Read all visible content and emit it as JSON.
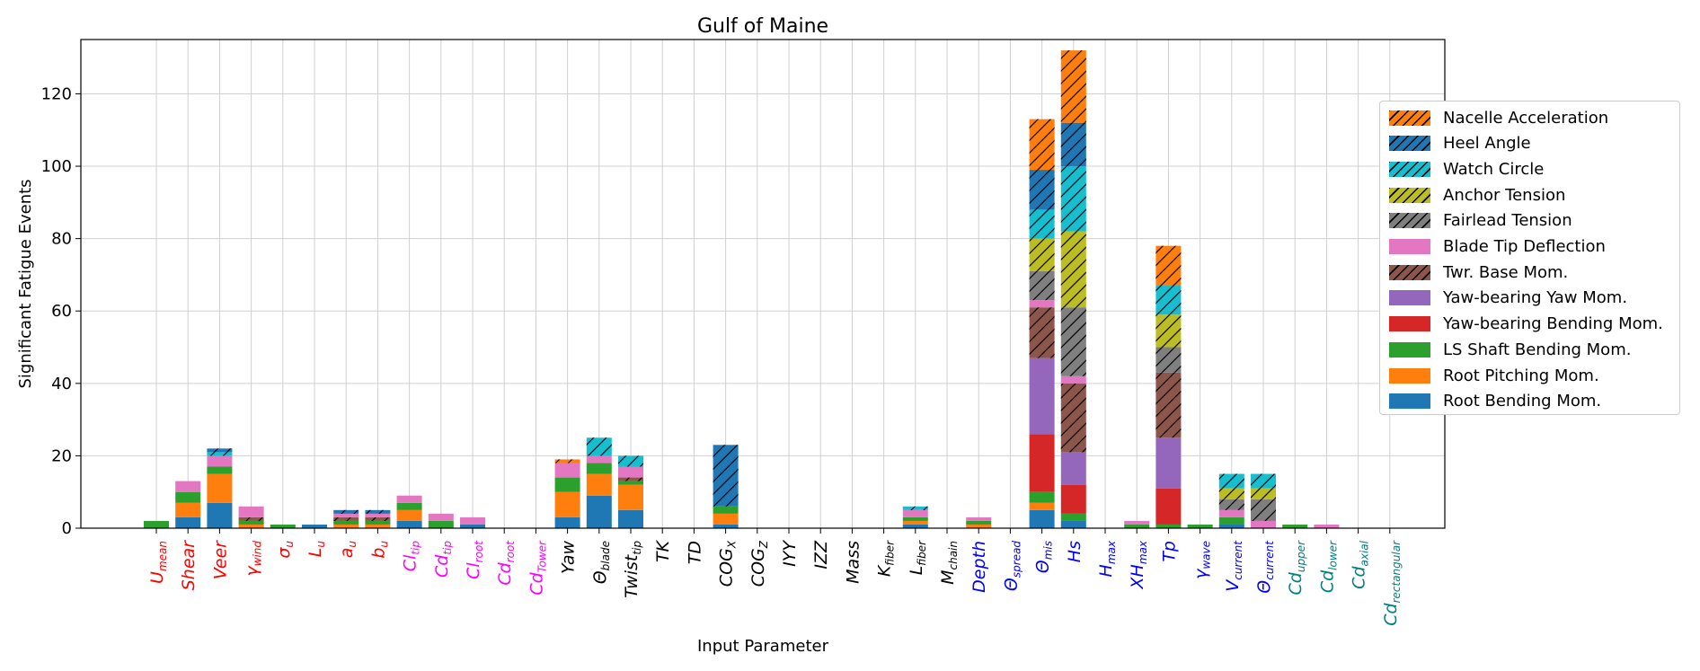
{
  "chart_data": {
    "type": "bar",
    "stacked": true,
    "title": "Gulf of Maine",
    "xlabel": "Input Parameter",
    "ylabel": "Significant Fatigue Events",
    "ylim": [
      0,
      135
    ],
    "yticks": [
      0,
      20,
      40,
      60,
      80,
      100,
      120
    ],
    "grid": true,
    "legend_position": "right, outside plot",
    "categories": [
      {
        "base": "U",
        "sub": "mean",
        "color": "#ff0000"
      },
      {
        "base": "Shear",
        "sub": "",
        "color": "#ff0000"
      },
      {
        "base": "Veer",
        "sub": "",
        "color": "#ff0000"
      },
      {
        "base": "γ",
        "sub": "wind",
        "color": "#ff0000"
      },
      {
        "base": "σ",
        "sub": "u",
        "color": "#ff0000"
      },
      {
        "base": "L",
        "sub": "u",
        "color": "#ff0000"
      },
      {
        "base": "a",
        "sub": "u",
        "color": "#ff0000"
      },
      {
        "base": "b",
        "sub": "u",
        "color": "#ff0000"
      },
      {
        "base": "Cl",
        "sub": "tip",
        "color": "#ff00ff"
      },
      {
        "base": "Cd",
        "sub": "tip",
        "color": "#ff00ff"
      },
      {
        "base": "Cl",
        "sub": "root",
        "color": "#ff00ff"
      },
      {
        "base": "Cd",
        "sub": "root",
        "color": "#ff00ff"
      },
      {
        "base": "Cd",
        "sub": "Tower",
        "color": "#ff00ff"
      },
      {
        "base": "Yaw",
        "sub": "",
        "color": "#000000"
      },
      {
        "base": "Θ",
        "sub": "blade",
        "color": "#000000"
      },
      {
        "base": "Twist",
        "sub": "tip",
        "color": "#000000"
      },
      {
        "base": "TK",
        "sub": "",
        "color": "#000000"
      },
      {
        "base": "TD",
        "sub": "",
        "color": "#000000"
      },
      {
        "base": "COG",
        "sub": "X",
        "color": "#000000"
      },
      {
        "base": "COG",
        "sub": "Z",
        "color": "#000000"
      },
      {
        "base": "IYY",
        "sub": "",
        "color": "#000000"
      },
      {
        "base": "IZZ",
        "sub": "",
        "color": "#000000"
      },
      {
        "base": "Mass",
        "sub": "",
        "color": "#000000"
      },
      {
        "base": "K",
        "sub": "fiber",
        "color": "#000000"
      },
      {
        "base": "L",
        "sub": "fiber",
        "color": "#000000"
      },
      {
        "base": "M",
        "sub": "chain",
        "color": "#000000"
      },
      {
        "base": "Depth",
        "sub": "",
        "color": "#0000ff"
      },
      {
        "base": "Θ",
        "sub": "spread",
        "color": "#0000ff"
      },
      {
        "base": "Θ",
        "sub": "mis",
        "color": "#0000ff"
      },
      {
        "base": "Hs",
        "sub": "",
        "color": "#0000ff"
      },
      {
        "base": "H",
        "sub": "max",
        "color": "#0000ff"
      },
      {
        "base": "XH",
        "sub": "max",
        "color": "#0000ff"
      },
      {
        "base": "Tp",
        "sub": "",
        "color": "#0000ff"
      },
      {
        "base": "γ",
        "sub": "wave",
        "color": "#0000ff"
      },
      {
        "base": "V",
        "sub": "current",
        "color": "#0000ff"
      },
      {
        "base": "Θ",
        "sub": "current",
        "color": "#0000ff"
      },
      {
        "base": "Cd",
        "sub": "upper",
        "color": "#008080"
      },
      {
        "base": "Cd",
        "sub": "lower",
        "color": "#008080"
      },
      {
        "base": "Cd",
        "sub": "axial",
        "color": "#008080"
      },
      {
        "base": "Cd",
        "sub": "rectangular",
        "color": "#008080"
      }
    ],
    "series": [
      {
        "name": "Root Bending Mom.",
        "color": "#1f77b4",
        "hatch": false,
        "values": [
          0,
          3,
          7,
          0,
          0,
          1,
          0,
          0,
          2,
          0,
          1,
          0,
          0,
          3,
          9,
          5,
          0,
          0,
          1,
          0,
          0,
          0,
          0,
          0,
          1,
          0,
          0,
          0,
          5,
          2,
          0,
          0,
          0,
          0,
          1,
          0,
          0,
          0,
          0,
          0
        ]
      },
      {
        "name": "Root Pitching Mom.",
        "color": "#ff7f0e",
        "hatch": false,
        "values": [
          0,
          4,
          8,
          1,
          0,
          0,
          1,
          1,
          3,
          0,
          0,
          0,
          0,
          7,
          6,
          7,
          0,
          0,
          3,
          0,
          0,
          0,
          0,
          0,
          1,
          0,
          1,
          0,
          2,
          0,
          0,
          0,
          0,
          0,
          0,
          0,
          0,
          0,
          0,
          0
        ]
      },
      {
        "name": "LS Shaft Bending Mom.",
        "color": "#2ca02c",
        "hatch": false,
        "values": [
          2,
          3,
          2,
          1,
          1,
          0,
          1,
          1,
          2,
          2,
          0,
          0,
          0,
          4,
          3,
          1,
          0,
          0,
          2,
          0,
          0,
          0,
          0,
          0,
          1,
          0,
          1,
          0,
          3,
          2,
          0,
          1,
          1,
          1,
          2,
          0,
          1,
          0,
          0,
          0
        ]
      },
      {
        "name": "Yaw-bearing Bending Mom.",
        "color": "#d62728",
        "hatch": false,
        "values": [
          0,
          0,
          0,
          0,
          0,
          0,
          0,
          0,
          0,
          0,
          0,
          0,
          0,
          0,
          0,
          0,
          0,
          0,
          0,
          0,
          0,
          0,
          0,
          0,
          0,
          0,
          0,
          0,
          16,
          8,
          0,
          0,
          10,
          0,
          0,
          0,
          0,
          0,
          0,
          0
        ]
      },
      {
        "name": "Yaw-bearing Yaw Mom.",
        "color": "#9467bd",
        "hatch": false,
        "values": [
          0,
          0,
          0,
          0,
          0,
          0,
          0,
          0,
          0,
          0,
          0,
          0,
          0,
          0,
          0,
          0,
          0,
          0,
          0,
          0,
          0,
          0,
          0,
          0,
          0,
          0,
          0,
          0,
          21,
          9,
          0,
          0,
          14,
          0,
          0,
          0,
          0,
          0,
          0,
          0
        ]
      },
      {
        "name": "Twr. Base Mom.",
        "color": "#8c564b",
        "hatch": true,
        "values": [
          0,
          0,
          0,
          1,
          0,
          0,
          1,
          1,
          0,
          0,
          0,
          0,
          0,
          0,
          0,
          1,
          0,
          0,
          0,
          0,
          0,
          0,
          0,
          0,
          0,
          0,
          0,
          0,
          14,
          19,
          0,
          0,
          18,
          0,
          0,
          0,
          0,
          0,
          0,
          0
        ]
      },
      {
        "name": "Blade Tip Deflection",
        "color": "#e377c2",
        "hatch": false,
        "values": [
          0,
          3,
          3,
          3,
          0,
          0,
          1,
          1,
          2,
          2,
          2,
          0,
          0,
          4,
          2,
          3,
          0,
          0,
          0,
          0,
          0,
          0,
          0,
          0,
          2,
          0,
          1,
          0,
          2,
          2,
          0,
          1,
          0,
          0,
          2,
          2,
          0,
          1,
          0,
          0
        ]
      },
      {
        "name": "Fairlead Tension",
        "color": "#7f7f7f",
        "hatch": true,
        "values": [
          0,
          0,
          0,
          0,
          0,
          0,
          0,
          0,
          0,
          0,
          0,
          0,
          0,
          0,
          0,
          0,
          0,
          0,
          0,
          0,
          0,
          0,
          0,
          0,
          0,
          0,
          0,
          0,
          8,
          19,
          0,
          0,
          7,
          0,
          3,
          6,
          0,
          0,
          0,
          0
        ]
      },
      {
        "name": "Anchor Tension",
        "color": "#bcbd22",
        "hatch": true,
        "values": [
          0,
          0,
          0,
          0,
          0,
          0,
          0,
          0,
          0,
          0,
          0,
          0,
          0,
          0,
          0,
          0,
          0,
          0,
          0,
          0,
          0,
          0,
          0,
          0,
          0,
          0,
          0,
          0,
          9,
          21,
          0,
          0,
          9,
          0,
          3,
          3,
          0,
          0,
          0,
          0
        ]
      },
      {
        "name": "Watch Circle",
        "color": "#17becf",
        "hatch": true,
        "values": [
          0,
          0,
          1,
          0,
          0,
          0,
          0,
          0,
          0,
          0,
          0,
          0,
          0,
          0,
          5,
          3,
          0,
          0,
          0,
          0,
          0,
          0,
          0,
          0,
          1,
          0,
          0,
          0,
          8,
          18,
          0,
          0,
          8,
          0,
          4,
          4,
          0,
          0,
          0,
          0
        ]
      },
      {
        "name": "Heel Angle",
        "color": "#1f77b4",
        "hatch": true,
        "values": [
          0,
          0,
          1,
          0,
          0,
          0,
          1,
          1,
          0,
          0,
          0,
          0,
          0,
          0,
          0,
          0,
          0,
          0,
          17,
          0,
          0,
          0,
          0,
          0,
          0,
          0,
          0,
          0,
          11,
          12,
          0,
          0,
          0,
          0,
          0,
          0,
          0,
          0,
          0,
          0
        ]
      },
      {
        "name": "Nacelle Acceleration",
        "color": "#ff7f0e",
        "hatch": true,
        "values": [
          0,
          0,
          0,
          0,
          0,
          0,
          0,
          0,
          0,
          0,
          0,
          0,
          0,
          1,
          0,
          0,
          0,
          0,
          0,
          0,
          0,
          0,
          0,
          0,
          0,
          0,
          0,
          0,
          14,
          20,
          0,
          0,
          11,
          0,
          0,
          0,
          0,
          0,
          0,
          0
        ]
      }
    ]
  }
}
